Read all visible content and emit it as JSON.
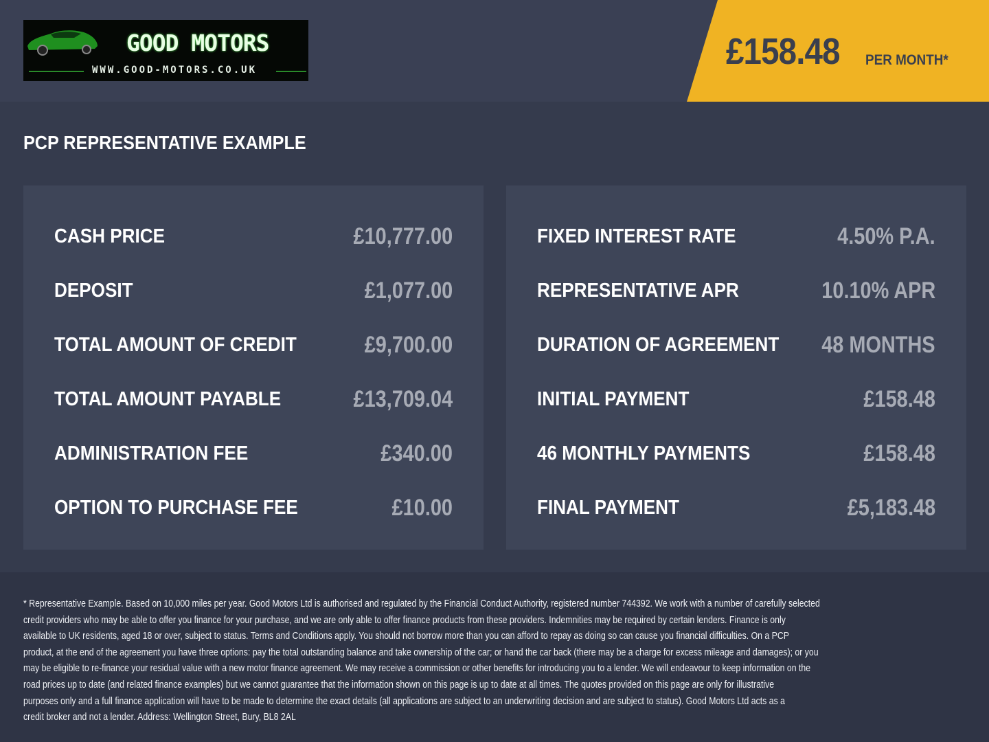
{
  "brand": {
    "name": "GOOD MOTORS",
    "url": "WWW.GOOD-MOTORS.CO.UK",
    "accent": "#f0b323"
  },
  "price": {
    "amount": "£158.48",
    "per": "PER MONTH*"
  },
  "section_title": "PCP REPRESENTATIVE EXAMPLE",
  "left_rows": [
    {
      "label": "CASH PRICE",
      "value": "£10,777.00"
    },
    {
      "label": "DEPOSIT",
      "value": "£1,077.00"
    },
    {
      "label": "TOTAL AMOUNT OF CREDIT",
      "value": "£9,700.00"
    },
    {
      "label": "TOTAL AMOUNT PAYABLE",
      "value": "£13,709.04"
    },
    {
      "label": "ADMINISTRATION FEE",
      "value": "£340.00"
    },
    {
      "label": "OPTION TO PURCHASE FEE",
      "value": "£10.00"
    }
  ],
  "right_rows": [
    {
      "label": "FIXED INTEREST RATE",
      "value": "4.50% P.A."
    },
    {
      "label": "REPRESENTATIVE APR",
      "value": "10.10% APR"
    },
    {
      "label": "DURATION OF AGREEMENT",
      "value": "48 MONTHS"
    },
    {
      "label": "INITIAL PAYMENT",
      "value": "£158.48"
    },
    {
      "label": "46 MONTHLY PAYMENTS",
      "value": "£158.48"
    },
    {
      "label": "FINAL PAYMENT",
      "value": "£5,183.48"
    }
  ],
  "disclaimer_lines": [
    "* Representative Example. Based on 10,000 miles per year. Good Motors Ltd is authorised and regulated by the Financial Conduct Authority, registered number 744392. We work with a number of carefully selected",
    "credit providers who may be able to offer you finance for your purchase, and we are only able to offer finance products from these providers. Indemnities may be required by certain lenders. Finance is only",
    "available to UK residents, aged 18 or over, subject to status. Terms and Conditions apply. You should not borrow more than you can afford to repay as doing so can cause you financial difficulties. On a PCP",
    "product, at the end of the agreement you have three options: pay the total outstanding balance and take ownership of the car; or hand the car back (there may be a charge for excess mileage and damages); or you",
    "may be eligible to re-finance your residual value with a new motor finance agreement. We may receive a commission or other benefits for introducing you to a lender. We will endeavour to keep information on the",
    "road prices up to date (and related finance examples) but we cannot guarantee that the information shown on this page is up to date at all times. The quotes provided on this page are only for illustrative",
    "purposes only and a full finance application will have to be made to determine the exact details (all applications are subject to an underwriting decision and are subject to status). Good Motors Ltd acts as a",
    "credit broker and not a lender. Address: Wellington Street, Bury, BL8 2AL"
  ]
}
